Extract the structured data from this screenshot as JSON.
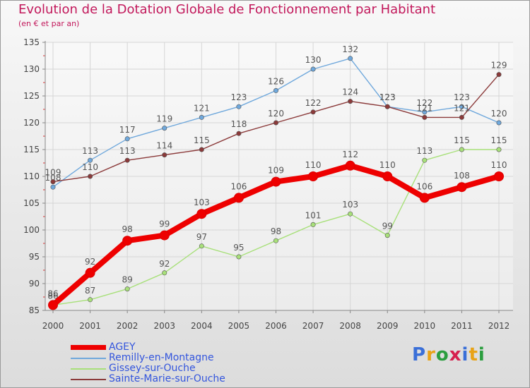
{
  "chart_data": {
    "type": "line",
    "title": "Evolution de la Dotation Globale de Fonctionnement par Habitant",
    "subtitle": "(en € et par an)",
    "xlabel": "",
    "ylabel": "",
    "ylim": [
      85,
      135
    ],
    "yticks": [
      85,
      90,
      95,
      100,
      105,
      110,
      115,
      120,
      125,
      130,
      135
    ],
    "x": [
      "2000",
      "2001",
      "2002",
      "2003",
      "2004",
      "2005",
      "2006",
      "2007",
      "2008",
      "2009",
      "2010",
      "2011",
      "2012"
    ],
    "series": [
      {
        "name": "AGEY",
        "color": "#ee0000",
        "values": [
          86,
          92,
          98,
          99,
          103,
          106,
          109,
          110,
          112,
          110,
          106,
          108,
          110
        ]
      },
      {
        "name": "Remilly-en-Montagne",
        "color": "#6fa8dc",
        "values": [
          108,
          113,
          117,
          119,
          121,
          123,
          126,
          130,
          132,
          123,
          122,
          123,
          120
        ]
      },
      {
        "name": "Gissey-sur-Ouche",
        "color": "#a8e07a",
        "values": [
          86,
          87,
          89,
          92,
          97,
          95,
          98,
          101,
          103,
          99,
          113,
          115,
          115
        ]
      },
      {
        "name": "Sainte-Marie-sur-Ouche",
        "color": "#8b3a3a",
        "values": [
          109,
          110,
          113,
          114,
          115,
          118,
          120,
          122,
          124,
          123,
          121,
          121,
          129
        ]
      }
    ],
    "grid": true,
    "legend": "bottom-left"
  },
  "brand": {
    "letters": [
      "P",
      "r",
      "o",
      "x",
      "i",
      "t",
      "i"
    ],
    "colors": [
      "#3a6fd8",
      "#e8a317",
      "#2b9e3f",
      "#d6204e",
      "#3a6fd8",
      "#e8a317",
      "#2b9e3f"
    ]
  }
}
